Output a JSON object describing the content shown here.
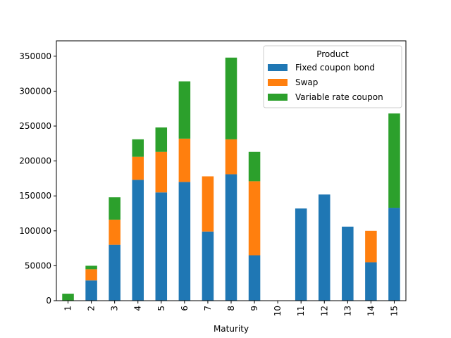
{
  "chart_data": {
    "type": "bar",
    "stacked": true,
    "title": "",
    "xlabel": "Maturity",
    "ylabel": "",
    "categories": [
      "1",
      "2",
      "3",
      "4",
      "5",
      "6",
      "7",
      "8",
      "9",
      "10",
      "11",
      "12",
      "13",
      "14",
      "15"
    ],
    "ylim": [
      0,
      372000
    ],
    "yticks": [
      0,
      50000,
      100000,
      150000,
      200000,
      250000,
      300000,
      350000
    ],
    "legend": {
      "title": "Product",
      "placement": "top-right"
    },
    "series": [
      {
        "name": "Fixed coupon bond",
        "color": "#1f77b4",
        "values": [
          0,
          29000,
          80000,
          173000,
          155000,
          170000,
          99000,
          181000,
          65000,
          0,
          132000,
          152000,
          106000,
          55000,
          133000
        ]
      },
      {
        "name": "Swap",
        "color": "#ff7f0e",
        "values": [
          0,
          16000,
          36000,
          33000,
          58000,
          62000,
          79000,
          50000,
          106000,
          0,
          0,
          0,
          0,
          45000,
          0
        ]
      },
      {
        "name": "Variable rate coupon",
        "color": "#2ca02c",
        "values": [
          10000,
          5000,
          32000,
          25000,
          35000,
          82000,
          0,
          117000,
          42000,
          0,
          0,
          0,
          0,
          0,
          135000
        ]
      }
    ]
  }
}
